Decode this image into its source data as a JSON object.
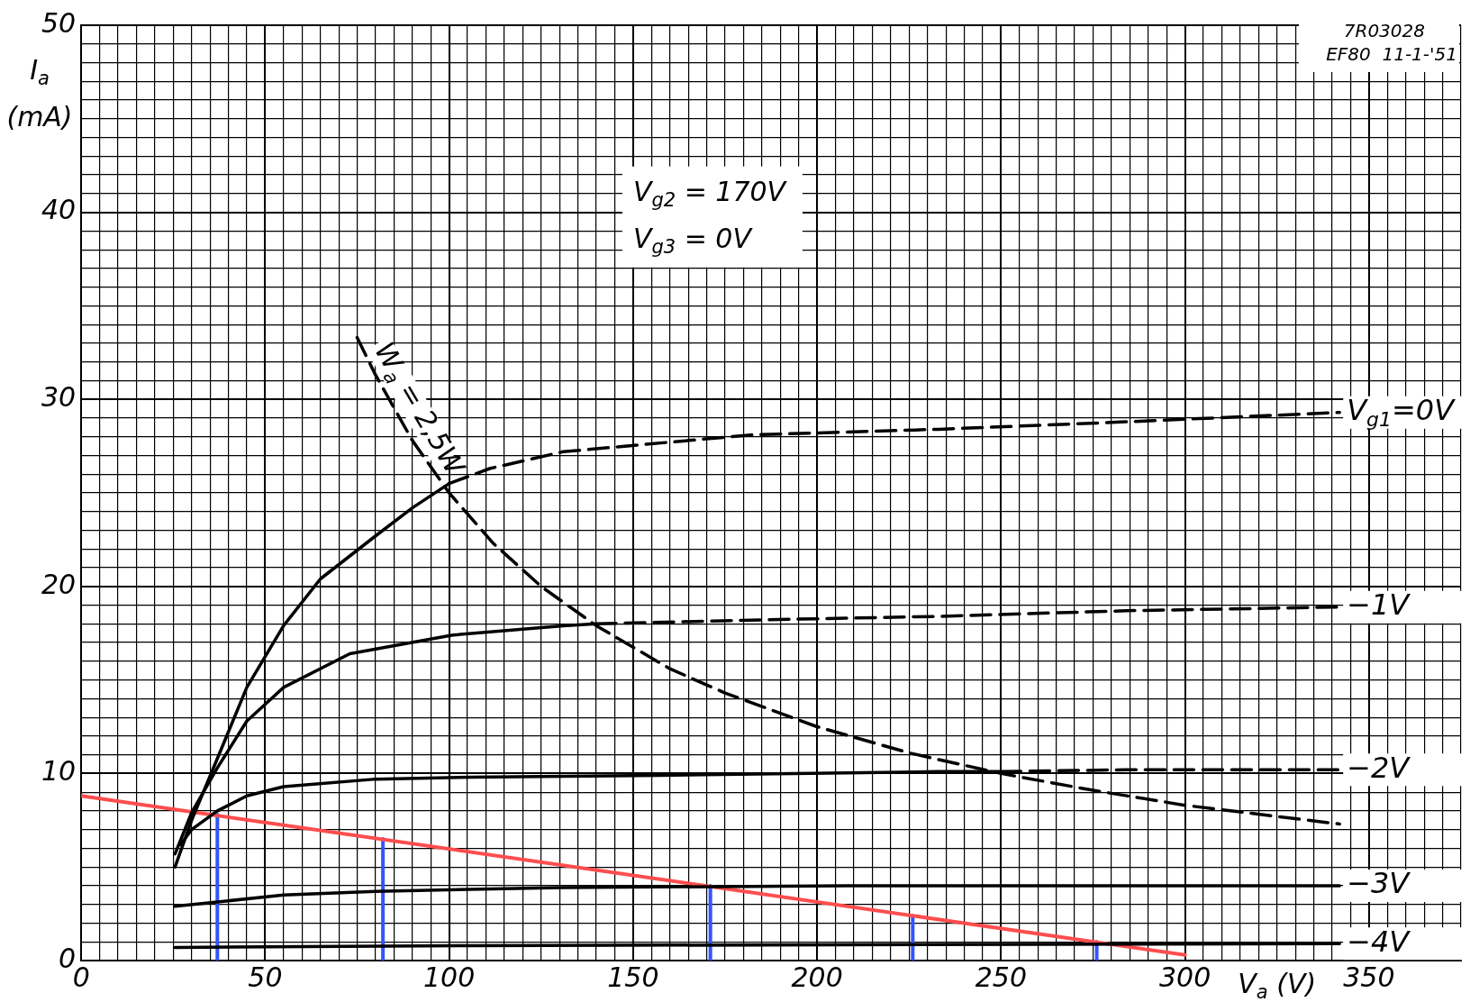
{
  "chart_data": {
    "type": "line",
    "xlabel": "V$_{a}$ (V)",
    "ylabel": "I$_{a}$ (mA)",
    "xlim": [
      0,
      375
    ],
    "ylim": [
      0,
      50
    ],
    "xticks": [
      0,
      {
        "value": 5,
        "label": null
      },
      {
        "value": 10,
        "label": null
      },
      {
        "value": 15,
        "label": null
      },
      {
        "value": 20,
        "label": null
      },
      {
        "value": 25,
        "label": null
      },
      {
        "value": 30,
        "label": null
      },
      {
        "value": 35,
        "label": null
      },
      {
        "value": 40,
        "label": null
      },
      {
        "value": 45,
        "label": null
      },
      50,
      {
        "value": 55,
        "label": null
      },
      {
        "value": 60,
        "label": null
      },
      {
        "value": 65,
        "label": null
      },
      {
        "value": 70,
        "label": null
      },
      {
        "value": 75,
        "label": null
      },
      {
        "value": 80,
        "label": null
      },
      {
        "value": 85,
        "label": null
      },
      {
        "value": 90,
        "label": null
      },
      {
        "value": 95,
        "label": null
      },
      100,
      {
        "value": 105,
        "label": null
      },
      {
        "value": 110,
        "label": null
      },
      {
        "value": 115,
        "label": null
      },
      {
        "value": 120,
        "label": null
      },
      {
        "value": 125,
        "label": null
      },
      {
        "value": 130,
        "label": null
      },
      {
        "value": 135,
        "label": null
      },
      {
        "value": 140,
        "label": null
      },
      {
        "value": 145,
        "label": null
      },
      150,
      {
        "value": 155,
        "label": null
      },
      {
        "value": 160,
        "label": null
      },
      {
        "value": 165,
        "label": null
      },
      {
        "value": 170,
        "label": null
      },
      {
        "value": 175,
        "label": null
      },
      {
        "value": 180,
        "label": null
      },
      {
        "value": 185,
        "label": null
      },
      {
        "value": 190,
        "label": null
      },
      {
        "value": 195,
        "label": null
      },
      200,
      {
        "value": 205,
        "label": null
      },
      {
        "value": 210,
        "label": null
      },
      {
        "value": 215,
        "label": null
      },
      {
        "value": 220,
        "label": null
      },
      {
        "value": 225,
        "label": null
      },
      {
        "value": 230,
        "label": null
      },
      {
        "value": 235,
        "label": null
      },
      {
        "value": 240,
        "label": null
      },
      {
        "value": 245,
        "label": null
      },
      250,
      {
        "value": 255,
        "label": null
      },
      {
        "value": 260,
        "label": null
      },
      {
        "value": 265,
        "label": null
      },
      {
        "value": 270,
        "label": null
      },
      {
        "value": 275,
        "label": null
      },
      {
        "value": 280,
        "label": null
      },
      {
        "value": 285,
        "label": null
      },
      {
        "value": 290,
        "label": null
      },
      {
        "value": 295,
        "label": null
      },
      300,
      {
        "value": 305,
        "label": null
      },
      {
        "value": 310,
        "label": null
      },
      {
        "value": 315,
        "label": null
      },
      {
        "value": 320,
        "label": null
      },
      {
        "value": 325,
        "label": null
      },
      {
        "value": 330,
        "label": null
      },
      {
        "value": 335,
        "label": null
      },
      {
        "value": 340,
        "label": null
      },
      {
        "value": 345,
        "label": null
      },
      350,
      {
        "value": 355,
        "label": null
      },
      {
        "value": 360,
        "label": null
      },
      {
        "value": 365,
        "label": null
      },
      {
        "value": 370,
        "label": null
      },
      {
        "value": 375,
        "label": null
      }
    ],
    "yticks": [
      0,
      {
        "value": 1,
        "label": null
      },
      {
        "value": 2,
        "label": null
      },
      {
        "value": 3,
        "label": null
      },
      {
        "value": 4,
        "label": null
      },
      {
        "value": 5,
        "label": null
      },
      {
        "value": 6,
        "label": null
      },
      {
        "value": 7,
        "label": null
      },
      {
        "value": 8,
        "label": null
      },
      {
        "value": 9,
        "label": null
      },
      10,
      {
        "value": 11,
        "label": null
      },
      {
        "value": 12,
        "label": null
      },
      {
        "value": 13,
        "label": null
      },
      {
        "value": 14,
        "label": null
      },
      {
        "value": 15,
        "label": null
      },
      {
        "value": 16,
        "label": null
      },
      {
        "value": 17,
        "label": null
      },
      {
        "value": 18,
        "label": null
      },
      {
        "value": 19,
        "label": null
      },
      20,
      {
        "value": 21,
        "label": null
      },
      {
        "value": 22,
        "label": null
      },
      {
        "value": 23,
        "label": null
      },
      {
        "value": 24,
        "label": null
      },
      {
        "value": 25,
        "label": null
      },
      {
        "value": 26,
        "label": null
      },
      {
        "value": 27,
        "label": null
      },
      {
        "value": 28,
        "label": null
      },
      {
        "value": 29,
        "label": null
      },
      30,
      {
        "value": 31,
        "label": null
      },
      {
        "value": 32,
        "label": null
      },
      {
        "value": 33,
        "label": null
      },
      {
        "value": 34,
        "label": null
      },
      {
        "value": 35,
        "label": null
      },
      {
        "value": 36,
        "label": null
      },
      {
        "value": 37,
        "label": null
      },
      {
        "value": 38,
        "label": null
      },
      {
        "value": 39,
        "label": null
      },
      40,
      {
        "value": 41,
        "label": null
      },
      {
        "value": 42,
        "label": null
      },
      {
        "value": 43,
        "label": null
      },
      {
        "value": 44,
        "label": null
      },
      {
        "value": 45,
        "label": null
      },
      {
        "value": 46,
        "label": null
      },
      {
        "value": 47,
        "label": null
      },
      {
        "value": 48,
        "label": null
      },
      {
        "value": 49,
        "label": null
      },
      50
    ],
    "grid": true,
    "legend": false,
    "marker": "none",
    "series": [
      {
        "type": "line",
        "color": "#000000",
        "line_style": "solid",
        "x": [
          25.5,
          30,
          37,
          45,
          55,
          65,
          80,
          90,
          100
        ],
        "values": [
          5.0,
          7.5,
          10.8,
          14.6,
          17.9,
          20.4,
          22.7,
          24.2,
          25.5
        ]
      },
      {
        "type": "line",
        "name": "V$_{g1}$=0V",
        "color": "#000000",
        "line_style": "dashed",
        "x": [
          100,
          111,
          131,
          182,
          233,
          284,
          342
        ],
        "values": [
          25.5,
          26.3,
          27.2,
          28.1,
          28.4,
          28.8,
          29.3
        ]
      },
      {
        "type": "line",
        "color": "#000000",
        "line_style": "solid",
        "x": [
          25.5,
          30,
          37,
          45,
          55,
          73,
          101,
          131,
          140
        ],
        "values": [
          5.7,
          7.9,
          10.3,
          12.8,
          14.6,
          16.4,
          17.4,
          17.9,
          18.0
        ]
      },
      {
        "type": "line",
        "name": "−1V",
        "color": "#000000",
        "line_style": "dashed",
        "x": [
          140,
          182,
          233,
          284,
          342
        ],
        "values": [
          18.0,
          18.2,
          18.4,
          18.7,
          18.9
        ]
      },
      {
        "type": "line",
        "color": "#000000",
        "line_style": "solid",
        "x": [
          27,
          30,
          37,
          45,
          55,
          80,
          106,
          157,
          233,
          250
        ],
        "values": [
          6.2,
          7.0,
          8.0,
          8.8,
          9.3,
          9.7,
          9.8,
          9.9,
          10.1,
          10.1
        ]
      },
      {
        "type": "line",
        "name": "−2V",
        "color": "#000000",
        "line_style": "dashed",
        "x": [
          250,
          284,
          342
        ],
        "values": [
          10.1,
          10.2,
          10.2
        ]
      },
      {
        "type": "line",
        "name": "−3V",
        "color": "#000000",
        "line_style": "solid",
        "x": [
          25.5,
          55,
          80,
          131,
          208,
          342
        ],
        "values": [
          2.9,
          3.5,
          3.7,
          3.9,
          4.0,
          4.0
        ]
      },
      {
        "type": "line",
        "name": "−4V",
        "color": "#000000",
        "line_style": "solid",
        "x": [
          25.5,
          106,
          342
        ],
        "values": [
          0.7,
          0.8,
          0.9
        ]
      },
      {
        "type": "line",
        "name": "W$_{a}$ = 2,5W",
        "color": "#000000",
        "line_style": "dashed",
        "x": [
          75,
          80,
          90,
          100,
          112,
          125,
          140,
          160,
          175,
          200,
          225,
          250,
          275,
          300,
          342
        ],
        "values": [
          33.3,
          31.3,
          27.8,
          25.0,
          22.3,
          20.0,
          17.9,
          15.6,
          14.3,
          12.5,
          11.1,
          10.0,
          9.1,
          8.3,
          7.3
        ]
      },
      {
        "type": "line",
        "color": "#ff4d4d",
        "line_style": "solid",
        "x": [
          0,
          300
        ],
        "values": [
          8.8,
          0.3
        ]
      },
      {
        "type": "line",
        "color": "#3355ff",
        "line_style": "solid",
        "x": [
          37,
          37
        ],
        "values": [
          0,
          7.8
        ]
      },
      {
        "type": "line",
        "color": "#3355ff",
        "line_style": "solid",
        "x": [
          82,
          82
        ],
        "values": [
          0,
          6.5
        ]
      },
      {
        "type": "line",
        "color": "#3355ff",
        "line_style": "solid",
        "x": [
          171,
          171
        ],
        "values": [
          0,
          4.0
        ]
      },
      {
        "type": "line",
        "color": "#3355ff",
        "line_style": "solid",
        "x": [
          226,
          226
        ],
        "values": [
          0,
          2.4
        ]
      },
      {
        "type": "line",
        "color": "#3355ff",
        "line_style": "solid",
        "x": [
          276,
          276
        ],
        "values": [
          0,
          1.0
        ]
      }
    ],
    "annotations": [
      "V$_{g2}$ = 170V",
      "V$_{g3}$ = 0V",
      "7R03028",
      "EF80  11-1-'51"
    ]
  }
}
